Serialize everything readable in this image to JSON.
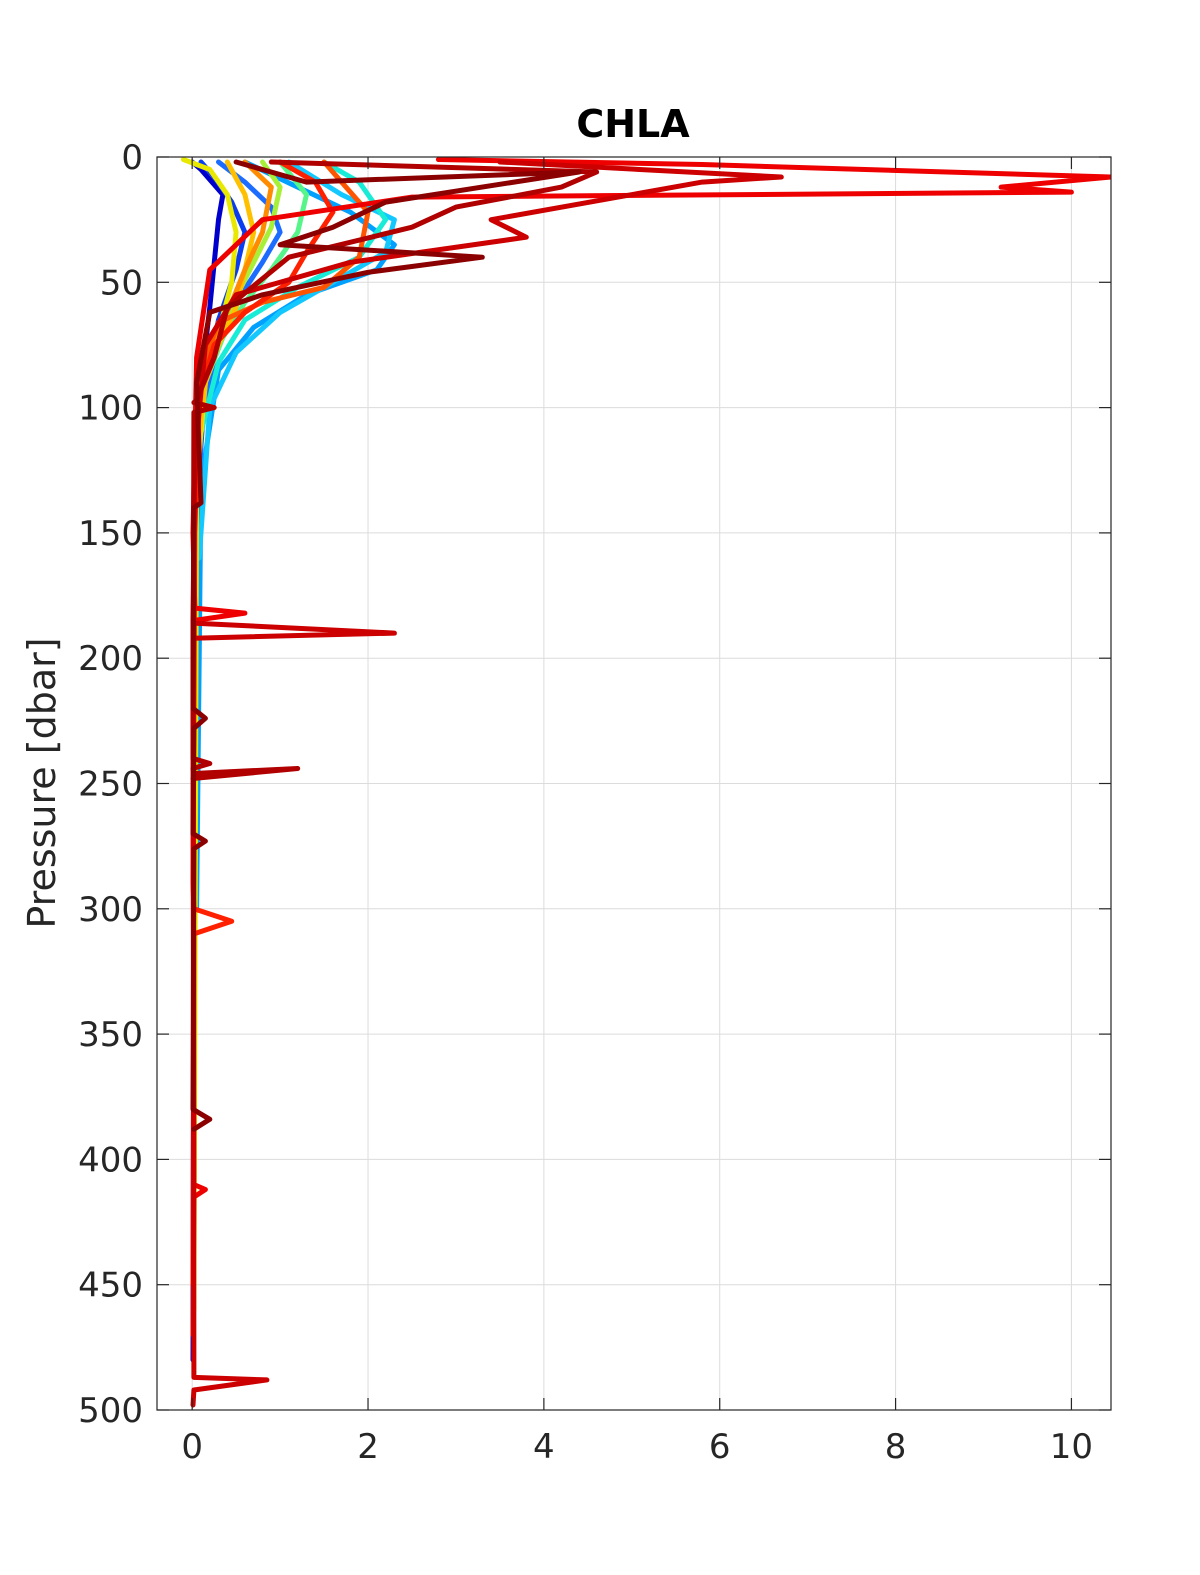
{
  "chart_data": {
    "type": "line",
    "title": "CHLA",
    "xlabel": "",
    "ylabel": "Pressure [dbar]",
    "xlim": [
      -0.4,
      10.45
    ],
    "ylim": [
      500,
      0
    ],
    "y_reversed": true,
    "grid": true,
    "xticks": [
      0,
      2,
      4,
      6,
      8,
      10
    ],
    "yticks": [
      0,
      50,
      100,
      150,
      200,
      250,
      300,
      350,
      400,
      450,
      500
    ],
    "xtick_labels": [
      "0",
      "2",
      "4",
      "6",
      "8",
      "10"
    ],
    "ytick_labels": [
      "0",
      "50",
      "100",
      "150",
      "200",
      "250",
      "300",
      "350",
      "400",
      "450",
      "500"
    ],
    "series": [
      {
        "color": "#0000cc",
        "x": [
          0.0,
          0.1,
          0.35,
          0.3,
          0.2,
          0.1,
          0.05,
          0.02,
          0.01
        ],
        "y": [
          2,
          5,
          15,
          25,
          60,
          90,
          150,
          300,
          480
        ]
      },
      {
        "color": "#0a3cf0",
        "x": [
          0.1,
          0.25,
          0.45,
          0.6,
          0.5,
          0.3,
          0.15,
          0.05,
          0.02,
          0.01
        ],
        "y": [
          2,
          8,
          18,
          30,
          45,
          65,
          90,
          140,
          300,
          470
        ]
      },
      {
        "color": "#1b6cff",
        "x": [
          0.3,
          0.6,
          0.9,
          1.0,
          0.8,
          0.5,
          0.25,
          0.1,
          0.05,
          0.02
        ],
        "y": [
          2,
          10,
          20,
          30,
          42,
          58,
          80,
          110,
          200,
          350
        ]
      },
      {
        "color": "#00a0ff",
        "x": [
          0.6,
          1.2,
          1.8,
          2.3,
          2.1,
          1.3,
          0.7,
          0.3,
          0.1,
          0.05
        ],
        "y": [
          2,
          12,
          22,
          35,
          45,
          55,
          68,
          85,
          130,
          300
        ]
      },
      {
        "color": "#13c8ff",
        "x": [
          1.1,
          1.7,
          2.3,
          2.2,
          1.6,
          1.0,
          0.5,
          0.2,
          0.08
        ],
        "y": [
          2,
          15,
          25,
          38,
          50,
          62,
          78,
          100,
          160
        ]
      },
      {
        "color": "#18ecd6",
        "x": [
          1.5,
          1.9,
          2.2,
          1.9,
          1.2,
          0.6,
          0.3,
          0.1
        ],
        "y": [
          2,
          10,
          25,
          40,
          52,
          65,
          82,
          110
        ]
      },
      {
        "color": "#55f58a",
        "x": [
          1.0,
          1.3,
          1.2,
          0.9,
          0.6,
          0.35,
          0.15,
          0.05
        ],
        "y": [
          2,
          15,
          30,
          45,
          58,
          72,
          90,
          120
        ]
      },
      {
        "color": "#a8f038",
        "x": [
          0.8,
          1.0,
          0.9,
          0.7,
          0.5,
          0.3,
          0.12,
          0.04
        ],
        "y": [
          2,
          12,
          28,
          42,
          56,
          70,
          88,
          120
        ]
      },
      {
        "color": "#e8e800",
        "x": [
          -0.1,
          0.2,
          0.4,
          0.5,
          0.45,
          0.3,
          0.15,
          0.05,
          0.02
        ],
        "y": [
          1,
          5,
          15,
          30,
          50,
          70,
          90,
          130,
          460
        ]
      },
      {
        "color": "#ffc000",
        "x": [
          0.4,
          0.6,
          0.7,
          0.6,
          0.5,
          0.3,
          0.15,
          0.05
        ],
        "y": [
          2,
          15,
          30,
          45,
          60,
          75,
          90,
          120
        ]
      },
      {
        "color": "#ff8c00",
        "x": [
          0.6,
          0.9,
          0.8,
          0.6,
          0.45,
          0.25,
          0.1,
          0.03
        ],
        "y": [
          2,
          12,
          30,
          45,
          58,
          72,
          88,
          130
        ]
      },
      {
        "color": "#ff5500",
        "x": [
          1.5,
          1.7,
          2.0,
          1.9,
          1.5,
          0.8,
          0.3,
          0.1,
          0.05
        ],
        "y": [
          2,
          10,
          22,
          40,
          52,
          58,
          66,
          85,
          120
        ]
      },
      {
        "color": "#ff2000",
        "x": [
          1.0,
          1.4,
          1.6,
          1.3,
          1.1,
          0.6,
          0.25,
          0.08,
          0.03,
          0.01,
          0.02,
          0.45,
          0.02,
          0.01
        ],
        "y": [
          2,
          10,
          22,
          38,
          50,
          62,
          75,
          95,
          150,
          290,
          300,
          305,
          310,
          450
        ]
      },
      {
        "color": "#ee0000",
        "x": [
          2.8,
          5.8,
          10.45,
          9.2,
          10.0,
          2.5,
          0.8,
          0.2,
          0.05,
          0.01,
          0.03,
          0.6,
          0.01,
          0.02,
          0.15,
          0.02,
          0.01
        ],
        "y": [
          1,
          3,
          8,
          12,
          14,
          16,
          25,
          45,
          80,
          150,
          180,
          182,
          185,
          410,
          412,
          415,
          470
        ]
      },
      {
        "color": "#cc0000",
        "x": [
          3.5,
          6.7,
          5.8,
          3.4,
          3.8,
          1.8,
          0.5,
          0.15,
          0.03,
          0.01,
          2.3,
          0.01,
          0.02,
          0.85,
          0.02,
          0.01
        ],
        "y": [
          2,
          8,
          10,
          25,
          32,
          42,
          55,
          75,
          120,
          186,
          190,
          192,
          487,
          488,
          492,
          498
        ]
      },
      {
        "color": "#b00000",
        "x": [
          0.9,
          4.6,
          4.2,
          3.0,
          2.5,
          1.1,
          0.4,
          0.25,
          0.05,
          0.02,
          0.25,
          0.02,
          0.01,
          0.2,
          0.01,
          0.02,
          1.2,
          0.01
        ],
        "y": [
          2,
          6,
          12,
          20,
          28,
          40,
          60,
          80,
          97,
          98,
          100,
          102,
          240,
          242,
          244,
          246,
          244,
          248
        ]
      },
      {
        "color": "#8b0000",
        "x": [
          0.5,
          1.3,
          4.4,
          2.2,
          1.6,
          1.0,
          3.3,
          2.0,
          0.8,
          0.2,
          0.05,
          0.1,
          0.02,
          0.01,
          0.15,
          0.02,
          0.01,
          0.15,
          0.02,
          0.01,
          0.2,
          0.02
        ],
        "y": [
          2,
          10,
          6,
          18,
          28,
          35,
          40,
          46,
          55,
          62,
          90,
          138,
          140,
          220,
          224,
          228,
          270,
          273,
          276,
          380,
          384,
          388
        ]
      }
    ]
  }
}
